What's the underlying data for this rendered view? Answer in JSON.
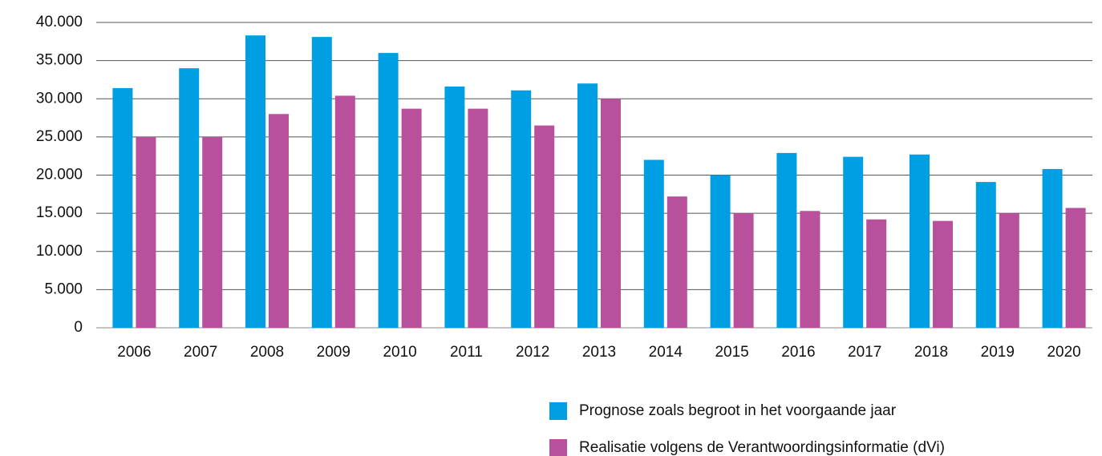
{
  "chart_data": {
    "type": "bar",
    "categories": [
      "2006",
      "2007",
      "2008",
      "2009",
      "2010",
      "2011",
      "2012",
      "2013",
      "2014",
      "2015",
      "2016",
      "2017",
      "2018",
      "2019",
      "2020"
    ],
    "series": [
      {
        "name": "Prognose zoals begroot in het voorgaande jaar",
        "color": "#009fe3",
        "values": [
          31400,
          34000,
          38300,
          38100,
          36000,
          31600,
          31100,
          32000,
          22000,
          20000,
          22900,
          22400,
          22700,
          19100,
          20800
        ]
      },
      {
        "name": "Realisatie volgens de Verantwoordingsinformatie (dVi)",
        "color": "#b8509c",
        "values": [
          25000,
          25000,
          28000,
          30400,
          28700,
          28700,
          26500,
          30000,
          17200,
          15000,
          15300,
          14200,
          14000,
          15000,
          15700
        ]
      }
    ],
    "ylim": [
      0,
      40000
    ],
    "yticks": [
      0,
      {
        "value": 5000,
        "label": "5.000"
      },
      {
        "value": 10000,
        "label": "10.000"
      },
      {
        "value": 15000,
        "label": "15.000"
      },
      {
        "value": 20000,
        "label": "20.000"
      },
      {
        "value": 25000,
        "label": "25.000"
      },
      {
        "value": 30000,
        "label": "30.000"
      },
      {
        "value": 35000,
        "label": "35.000"
      },
      {
        "value": 40000,
        "label": "40.000"
      }
    ],
    "grid": true,
    "legend": "bottom-right"
  }
}
